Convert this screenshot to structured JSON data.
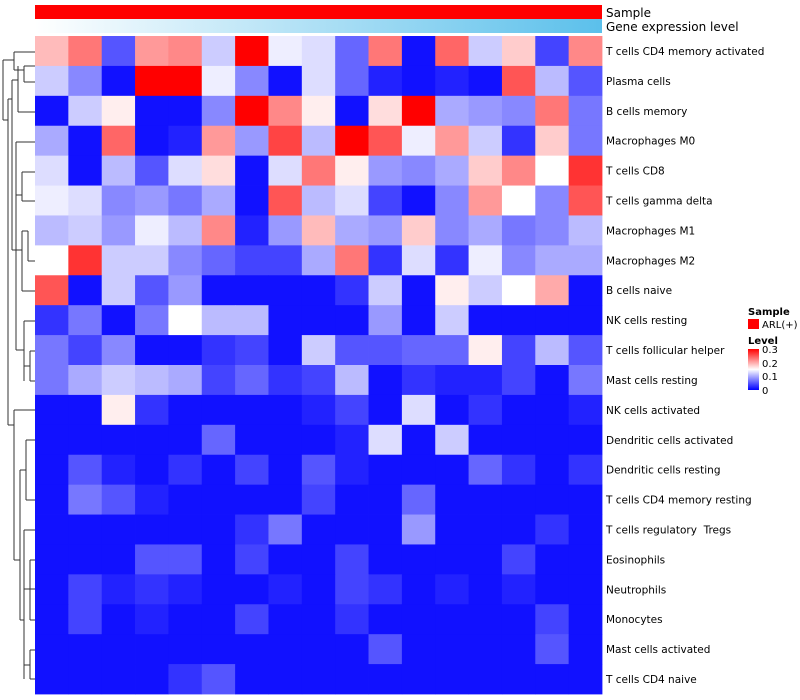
{
  "chart_data": {
    "type": "heatmap",
    "annotations": [
      {
        "label": "Sample",
        "color": "#ff0000"
      },
      {
        "label": "Gene expression level",
        "gradient": [
          "#ffffff",
          "#5bc0eb"
        ]
      }
    ],
    "rows": [
      "T cells CD4 memory activated",
      "Plasma cells",
      "B cells memory",
      "Macrophages M0",
      "T cells CD8",
      "T cells gamma delta",
      "Macrophages M1",
      "Macrophages M2",
      "B cells naive",
      "NK cells resting",
      "T cells follicular helper",
      "Mast cells resting",
      "NK cells activated",
      "Dendritic cells activated",
      "Dendritic cells resting",
      "T cells CD4 memory resting",
      "T cells regulatory  Tregs",
      "Eosinophils",
      "Neutrophils",
      "Monocytes",
      "Mast cells activated",
      "T cells CD4 naive"
    ],
    "n_columns": 17,
    "values": [
      [
        0.19,
        0.23,
        0.05,
        0.21,
        0.22,
        0.12,
        0.3,
        0.14,
        0.13,
        0.06,
        0.23,
        0.01,
        0.24,
        0.12,
        0.18,
        0.04,
        0.22
      ],
      [
        0.12,
        0.08,
        0.01,
        0.3,
        0.3,
        0.14,
        0.08,
        0.01,
        0.13,
        0.06,
        0.02,
        0.01,
        0.02,
        0.01,
        0.25,
        0.11,
        0.05
      ],
      [
        0.01,
        0.12,
        0.16,
        0.01,
        0.01,
        0.08,
        0.3,
        0.22,
        0.16,
        0.01,
        0.17,
        0.3,
        0.1,
        0.09,
        0.08,
        0.23,
        0.07
      ],
      [
        0.1,
        0.01,
        0.24,
        0.01,
        0.02,
        0.21,
        0.09,
        0.26,
        0.11,
        0.3,
        0.25,
        0.14,
        0.21,
        0.12,
        0.03,
        0.18,
        0.07
      ],
      [
        0.13,
        0.01,
        0.11,
        0.05,
        0.13,
        0.17,
        0.01,
        0.13,
        0.23,
        0.16,
        0.09,
        0.08,
        0.1,
        0.18,
        0.22,
        0.15,
        0.27
      ],
      [
        0.14,
        0.13,
        0.08,
        0.09,
        0.07,
        0.1,
        0.01,
        0.25,
        0.11,
        0.13,
        0.04,
        0.01,
        0.08,
        0.21,
        0.15,
        0.08,
        0.25
      ],
      [
        0.11,
        0.12,
        0.09,
        0.14,
        0.11,
        0.22,
        0.02,
        0.09,
        0.19,
        0.1,
        0.09,
        0.18,
        0.08,
        0.1,
        0.07,
        0.08,
        0.11
      ],
      [
        0.15,
        0.27,
        0.12,
        0.12,
        0.08,
        0.06,
        0.04,
        0.04,
        0.1,
        0.23,
        0.03,
        0.13,
        0.03,
        0.14,
        0.08,
        0.1,
        0.1
      ],
      [
        0.25,
        0.01,
        0.12,
        0.05,
        0.09,
        0.01,
        0.01,
        0.01,
        0.01,
        0.03,
        0.12,
        0.01,
        0.16,
        0.12,
        0.15,
        0.2,
        0.01
      ],
      [
        0.03,
        0.07,
        0.01,
        0.07,
        0.15,
        0.11,
        0.11,
        0.01,
        0.01,
        0.01,
        0.09,
        0.01,
        0.12,
        0.01,
        0.01,
        0.01,
        0.01
      ],
      [
        0.07,
        0.04,
        0.08,
        0.01,
        0.01,
        0.03,
        0.04,
        0.01,
        0.12,
        0.05,
        0.05,
        0.06,
        0.06,
        0.16,
        0.04,
        0.11,
        0.05
      ],
      [
        0.07,
        0.1,
        0.12,
        0.11,
        0.1,
        0.04,
        0.06,
        0.03,
        0.04,
        0.11,
        0.01,
        0.03,
        0.02,
        0.02,
        0.04,
        0.01,
        0.07
      ],
      [
        0.01,
        0.01,
        0.16,
        0.03,
        0.01,
        0.01,
        0.01,
        0.01,
        0.02,
        0.04,
        0.01,
        0.13,
        0.01,
        0.03,
        0.01,
        0.01,
        0.02
      ],
      [
        0.01,
        0.01,
        0.01,
        0.01,
        0.01,
        0.06,
        0.01,
        0.01,
        0.01,
        0.02,
        0.13,
        0.01,
        0.12,
        0.01,
        0.01,
        0.01,
        0.01
      ],
      [
        0.01,
        0.05,
        0.02,
        0.01,
        0.03,
        0.01,
        0.04,
        0.01,
        0.05,
        0.02,
        0.01,
        0.01,
        0.01,
        0.06,
        0.03,
        0.01,
        0.03
      ],
      [
        0.01,
        0.07,
        0.05,
        0.02,
        0.01,
        0.01,
        0.01,
        0.01,
        0.04,
        0.01,
        0.01,
        0.06,
        0.01,
        0.01,
        0.01,
        0.01,
        0.01
      ],
      [
        0.01,
        0.01,
        0.01,
        0.01,
        0.01,
        0.01,
        0.03,
        0.07,
        0.01,
        0.01,
        0.01,
        0.09,
        0.01,
        0.01,
        0.01,
        0.03,
        0.01
      ],
      [
        0.01,
        0.01,
        0.01,
        0.05,
        0.05,
        0.01,
        0.04,
        0.01,
        0.01,
        0.04,
        0.01,
        0.01,
        0.01,
        0.01,
        0.04,
        0.01,
        0.01
      ],
      [
        0.01,
        0.04,
        0.02,
        0.03,
        0.02,
        0.01,
        0.01,
        0.02,
        0.01,
        0.04,
        0.03,
        0.01,
        0.02,
        0.01,
        0.02,
        0.01,
        0.01
      ],
      [
        0.01,
        0.04,
        0.01,
        0.02,
        0.01,
        0.01,
        0.04,
        0.01,
        0.01,
        0.03,
        0.01,
        0.01,
        0.01,
        0.01,
        0.01,
        0.04,
        0.01
      ],
      [
        0.01,
        0.01,
        0.01,
        0.01,
        0.01,
        0.01,
        0.01,
        0.01,
        0.01,
        0.01,
        0.05,
        0.01,
        0.01,
        0.01,
        0.01,
        0.05,
        0.01
      ],
      [
        0.01,
        0.01,
        0.01,
        0.01,
        0.03,
        0.05,
        0.01,
        0.01,
        0.01,
        0.01,
        0.01,
        0.01,
        0.01,
        0.01,
        0.01,
        0.01,
        0.01
      ]
    ],
    "color_scale": {
      "min": 0,
      "max": 0.3,
      "low": "#0000ff",
      "mid": "#ffffff",
      "high": "#ff0000"
    },
    "legend": {
      "sample_title": "Sample",
      "sample_entry": "ARL(+)",
      "level_title": "Level",
      "level_ticks": [
        "0.3",
        "0.2",
        "0.1",
        "0"
      ]
    },
    "dendrogram": "rows, left side",
    "title": "",
    "xlabel": "",
    "ylabel": ""
  }
}
